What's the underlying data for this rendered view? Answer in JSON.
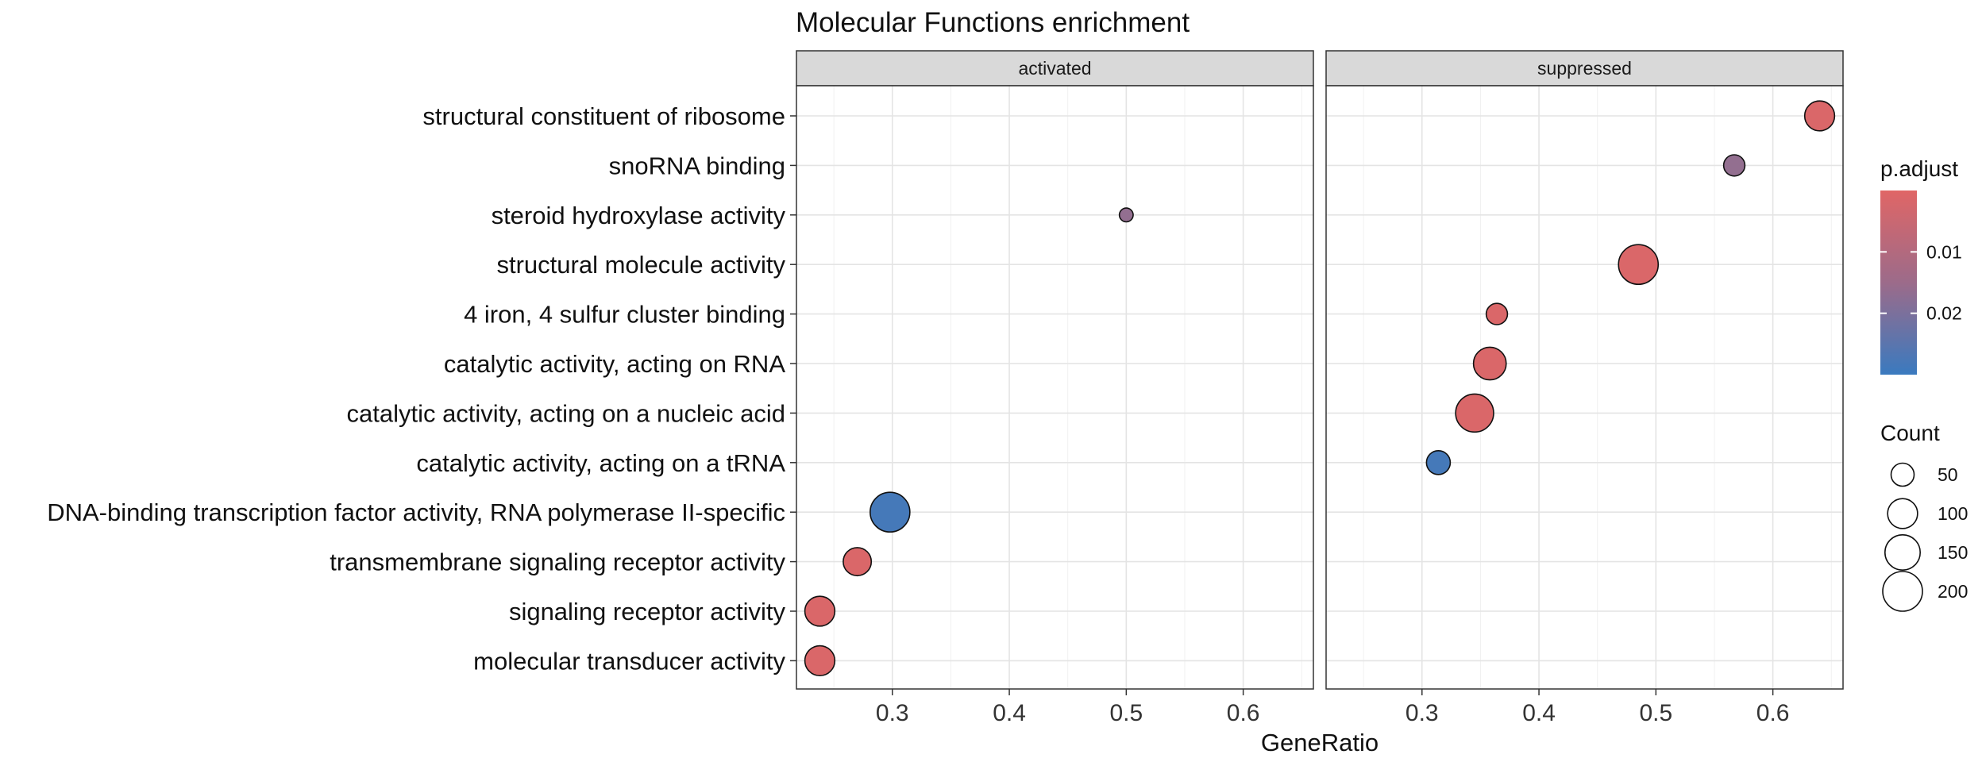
{
  "chart_data": {
    "type": "scatter",
    "title": "Molecular Functions enrichment",
    "xlabel": "GeneRatio",
    "ylabel": "",
    "xlim": [
      0.218,
      0.66
    ],
    "xticks": [
      0.3,
      0.4,
      0.5,
      0.6
    ],
    "xtick_labels": [
      "0.3",
      "0.4",
      "0.5",
      "0.6"
    ],
    "categories": [
      "structural constituent of ribosome",
      "snoRNA binding",
      "steroid hydroxylase activity",
      "structural molecule activity",
      "4 iron, 4 sulfur cluster binding",
      "catalytic activity, acting on RNA",
      "catalytic activity, acting on a nucleic acid",
      "catalytic activity, acting on a tRNA",
      "DNA-binding transcription factor activity, RNA polymerase II-specific",
      "transmembrane signaling receptor activity",
      "signaling receptor activity",
      "molecular transducer activity"
    ],
    "panels": [
      {
        "name": "activated",
        "points": [
          {
            "category": "steroid hydroxylase activity",
            "x": 0.5,
            "count": 10,
            "p_adjust": 0.014
          },
          {
            "category": "DNA-binding transcription factor activity, RNA polymerase II-specific",
            "x": 0.298,
            "count": 200,
            "p_adjust": 0.028
          },
          {
            "category": "transmembrane signaling receptor activity",
            "x": 0.27,
            "count": 85,
            "p_adjust": 0.001
          },
          {
            "category": "signaling receptor activity",
            "x": 0.238,
            "count": 100,
            "p_adjust": 0.001
          },
          {
            "category": "molecular transducer activity",
            "x": 0.238,
            "count": 100,
            "p_adjust": 0.001
          }
        ]
      },
      {
        "name": "suppressed",
        "points": [
          {
            "category": "structural constituent of ribosome",
            "x": 0.64,
            "count": 100,
            "p_adjust": 0.001
          },
          {
            "category": "snoRNA binding",
            "x": 0.567,
            "count": 40,
            "p_adjust": 0.014
          },
          {
            "category": "structural molecule activity",
            "x": 0.485,
            "count": 200,
            "p_adjust": 0.001
          },
          {
            "category": "4 iron, 4 sulfur cluster binding",
            "x": 0.364,
            "count": 40,
            "p_adjust": 0.001
          },
          {
            "category": "catalytic activity, acting on RNA",
            "x": 0.358,
            "count": 125,
            "p_adjust": 0.001
          },
          {
            "category": "catalytic activity, acting on a nucleic acid",
            "x": 0.345,
            "count": 180,
            "p_adjust": 0.001
          },
          {
            "category": "catalytic activity, acting on a tRNA",
            "x": 0.314,
            "count": 55,
            "p_adjust": 0.028
          }
        ]
      }
    ],
    "color_scale": {
      "title": "p.adjust",
      "low_color": "#e06666",
      "high_color": "#3a7abf",
      "range": [
        0.0,
        0.03
      ],
      "breaks": [
        0.01,
        0.02
      ],
      "break_labels": [
        "0.01",
        "0.02"
      ]
    },
    "size_scale": {
      "title": "Count",
      "breaks": [
        50,
        100,
        150,
        200
      ],
      "break_labels": [
        "50",
        "100",
        "150",
        "200"
      ]
    },
    "grid": true,
    "legend_position": "right"
  }
}
